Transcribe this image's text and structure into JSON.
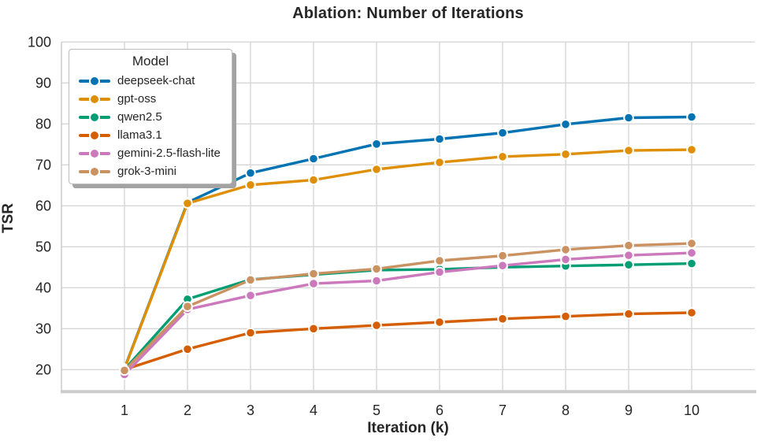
{
  "chart_data": {
    "type": "line",
    "title": "Ablation: Number of Iterations",
    "xlabel": "Iteration (k)",
    "ylabel": "TSR",
    "legend_title": "Model",
    "legend_position": "upper-left",
    "grid": true,
    "x": [
      1,
      2,
      3,
      4,
      5,
      6,
      7,
      8,
      9,
      10
    ],
    "xticks": [
      1,
      2,
      3,
      4,
      5,
      6,
      7,
      8,
      9,
      10
    ],
    "yticks": [
      20,
      30,
      40,
      50,
      60,
      70,
      80,
      90,
      100
    ],
    "xlim": [
      0,
      11
    ],
    "ylim": [
      15,
      100
    ],
    "series": [
      {
        "name": "deepseek-chat",
        "color": "#0173b2",
        "values": [
          20.3,
          60.8,
          68.0,
          71.5,
          75.1,
          76.3,
          77.8,
          79.9,
          81.5,
          81.7
        ]
      },
      {
        "name": "gpt-oss",
        "color": "#de8f05",
        "values": [
          20.2,
          60.6,
          65.1,
          66.3,
          68.9,
          70.6,
          72.0,
          72.6,
          73.5,
          73.7
        ]
      },
      {
        "name": "qwen2.5",
        "color": "#029e73",
        "values": [
          20.0,
          37.2,
          42.0,
          43.2,
          44.3,
          44.5,
          45.0,
          45.3,
          45.6,
          45.9
        ]
      },
      {
        "name": "llama3.1",
        "color": "#d55e00",
        "values": [
          20.0,
          25.0,
          29.0,
          30.0,
          30.8,
          31.6,
          32.4,
          33.0,
          33.6,
          33.9
        ]
      },
      {
        "name": "gemini-2.5-flash-lite",
        "color": "#cc78bc",
        "values": [
          18.8,
          34.7,
          38.1,
          41.0,
          41.7,
          43.8,
          45.4,
          46.9,
          47.9,
          48.5
        ]
      },
      {
        "name": "grok-3-mini",
        "color": "#ca9161",
        "values": [
          19.8,
          35.4,
          41.9,
          43.4,
          44.6,
          46.6,
          47.8,
          49.3,
          50.3,
          50.8
        ]
      }
    ],
    "style": {
      "grid_color": "#d6d6d6",
      "spine_color": "#cccccc",
      "text_color": "#262626",
      "background": "#ffffff"
    }
  }
}
